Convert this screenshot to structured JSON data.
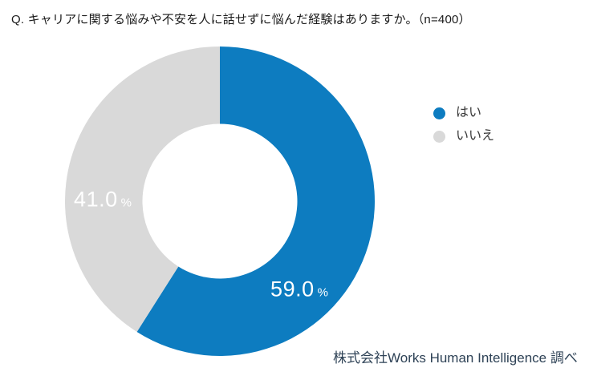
{
  "header": {
    "title": "Q. キャリアに関する悩みや不安を人に話せずに悩んだ経験はありますか。（n=400）"
  },
  "chart_data": {
    "type": "pie",
    "subtype": "donut",
    "title": "Q. キャリアに関する悩みや不安を人に話せずに悩んだ経験はありますか。",
    "sample_size": "n=400",
    "categories": [
      "はい",
      "いいえ"
    ],
    "values": [
      59.0,
      41.0
    ],
    "unit": "%",
    "colors": [
      "#0d7cc0",
      "#d9d9d9"
    ],
    "start_angle": "top",
    "direction": "clockwise",
    "inner_radius_ratio": 0.5,
    "legend_position": "right",
    "data_label_color": "#ffffff"
  },
  "slice_labels": {
    "yes_value": "59.0",
    "no_value": "41.0",
    "percent_sign": "%"
  },
  "footer": {
    "source": "株式会社Works Human Intelligence 調べ"
  }
}
